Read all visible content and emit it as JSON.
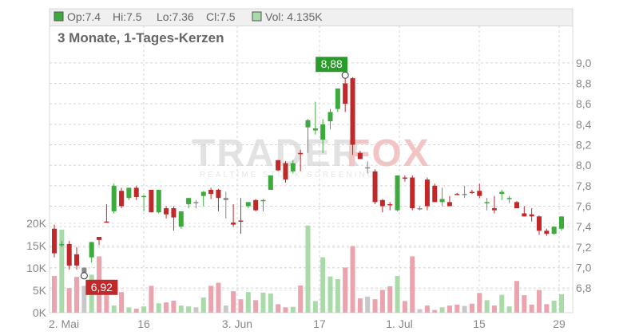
{
  "header": {
    "open_label": "Op:7.4",
    "high_label": "Hi:7.5",
    "low_label": "Lo:7.36",
    "close_label": "Cl:7.5",
    "volume_label": "Vol: 4.135K",
    "price_swatch_color": "#3daa3d",
    "volume_swatch_color": "#a8dba8"
  },
  "subtitle": "3 Monate, 1-Tages-Kerzen",
  "watermark": {
    "brand_left": "TRADER",
    "brand_right": "FOX",
    "tagline": "REALTIME STOCK SCREENING"
  },
  "colors": {
    "up": "#3daa3d",
    "down": "#c0282a",
    "volume_up": "#a8dba8",
    "volume_down": "#eba3ad",
    "volume_neutral": "#c8c8c8",
    "max_flag": "#2a9a2a",
    "min_flag": "#c0282a"
  },
  "chart_data": {
    "type": "candlestick",
    "title": "3 Monate, 1-Tages-Kerzen",
    "price_axis": {
      "ylim": [
        6.7,
        9.1
      ],
      "ticks": [
        "9,0",
        "8,8",
        "8,6",
        "8,4",
        "8,2",
        "8,0",
        "7,8",
        "7,6",
        "7,4",
        "7,2",
        "7,0",
        "6,8"
      ]
    },
    "volume_axis": {
      "ylim": [
        0,
        20000
      ],
      "ticks": [
        "20K",
        "15K",
        "10K",
        "5K",
        "0K"
      ]
    },
    "x_ticks": [
      "2. Mai",
      "16",
      "3. Jun",
      "17",
      "1. Jul",
      "15",
      "29"
    ],
    "max_label": "8,88",
    "min_label": "6,92",
    "candles": [
      {
        "o": 7.38,
        "h": 7.42,
        "l": 7.1,
        "c": 7.14,
        "v": 8200,
        "d": "down"
      },
      {
        "o": 7.23,
        "h": 7.26,
        "l": 7.2,
        "c": 7.23,
        "v": 18600,
        "d": "up"
      },
      {
        "o": 7.23,
        "h": 7.26,
        "l": 6.98,
        "c": 7.02,
        "v": 5500,
        "d": "down"
      },
      {
        "o": 7.13,
        "h": 7.2,
        "l": 6.98,
        "c": 7.02,
        "v": 8000,
        "d": "down"
      },
      {
        "o": 6.95,
        "h": 7.0,
        "l": 6.92,
        "c": 7.0,
        "v": 6000,
        "d": "neutral"
      },
      {
        "o": 7.1,
        "h": 7.25,
        "l": 7.05,
        "c": 7.25,
        "v": 8500,
        "d": "up"
      },
      {
        "o": 7.27,
        "h": 7.3,
        "l": 7.22,
        "c": 7.3,
        "v": 12600,
        "d": "down"
      },
      {
        "o": 7.45,
        "h": 7.62,
        "l": 7.44,
        "c": 7.45,
        "v": 4000,
        "d": "down"
      },
      {
        "o": 7.55,
        "h": 7.82,
        "l": 7.53,
        "c": 7.8,
        "v": 1600,
        "d": "up"
      },
      {
        "o": 7.75,
        "h": 7.78,
        "l": 7.58,
        "c": 7.6,
        "v": 4600,
        "d": "down"
      },
      {
        "o": 7.68,
        "h": 7.78,
        "l": 7.66,
        "c": 7.78,
        "v": 1200,
        "d": "up"
      },
      {
        "o": 7.78,
        "h": 7.8,
        "l": 7.66,
        "c": 7.69,
        "v": 900,
        "d": "down"
      },
      {
        "o": 7.7,
        "h": 7.71,
        "l": 7.55,
        "c": 7.7,
        "v": 1400,
        "d": "up"
      },
      {
        "o": 7.76,
        "h": 7.76,
        "l": 7.54,
        "c": 7.54,
        "v": 6000,
        "d": "down"
      },
      {
        "o": 7.54,
        "h": 7.76,
        "l": 7.53,
        "c": 7.76,
        "v": 2100,
        "d": "up"
      },
      {
        "o": 7.58,
        "h": 7.6,
        "l": 7.48,
        "c": 7.52,
        "v": 2300,
        "d": "down"
      },
      {
        "o": 7.58,
        "h": 7.6,
        "l": 7.36,
        "c": 7.49,
        "v": 2700,
        "d": "down"
      },
      {
        "o": 7.4,
        "h": 7.55,
        "l": 7.38,
        "c": 7.55,
        "v": 1600,
        "d": "up"
      },
      {
        "o": 7.62,
        "h": 7.68,
        "l": 7.58,
        "c": 7.68,
        "v": 1400,
        "d": "up"
      },
      {
        "o": 7.64,
        "h": 7.66,
        "l": 7.58,
        "c": 7.64,
        "v": 1200,
        "d": "neutral"
      },
      {
        "o": 7.74,
        "h": 7.75,
        "l": 7.6,
        "c": 7.7,
        "v": 3400,
        "d": "up"
      },
      {
        "o": 7.76,
        "h": 7.78,
        "l": 7.67,
        "c": 7.72,
        "v": 6000,
        "d": "down"
      },
      {
        "o": 7.76,
        "h": 7.77,
        "l": 7.55,
        "c": 7.68,
        "v": 6700,
        "d": "down"
      },
      {
        "o": 7.68,
        "h": 7.74,
        "l": 7.48,
        "c": 7.66,
        "v": 1600,
        "d": "neutral"
      },
      {
        "o": 7.44,
        "h": 7.62,
        "l": 7.4,
        "c": 7.42,
        "v": 4800,
        "d": "down"
      },
      {
        "o": 7.46,
        "h": 7.68,
        "l": 7.33,
        "c": 7.46,
        "v": 3000,
        "d": "down"
      },
      {
        "o": 7.6,
        "h": 7.64,
        "l": 7.58,
        "c": 7.64,
        "v": 4600,
        "d": "up"
      },
      {
        "o": 7.66,
        "h": 7.67,
        "l": 7.55,
        "c": 7.56,
        "v": 2800,
        "d": "down"
      },
      {
        "o": 7.66,
        "h": 7.67,
        "l": 7.55,
        "c": 7.66,
        "v": 4500,
        "d": "up"
      },
      {
        "o": 7.76,
        "h": 7.9,
        "l": 7.76,
        "c": 7.9,
        "v": 4300,
        "d": "up"
      },
      {
        "o": 7.95,
        "h": 8.05,
        "l": 7.94,
        "c": 8.05,
        "v": 1900,
        "d": "down"
      },
      {
        "o": 8.02,
        "h": 8.04,
        "l": 7.83,
        "c": 7.86,
        "v": 1200,
        "d": "down"
      },
      {
        "o": 7.94,
        "h": 8.05,
        "l": 7.92,
        "c": 8.02,
        "v": 1300,
        "d": "up"
      },
      {
        "o": 8.12,
        "h": 8.15,
        "l": 7.94,
        "c": 8.12,
        "v": 6100,
        "d": "down"
      },
      {
        "o": 8.37,
        "h": 8.45,
        "l": 8.12,
        "c": 8.44,
        "v": 19500,
        "d": "up"
      },
      {
        "o": 8.36,
        "h": 8.62,
        "l": 8.3,
        "c": 8.34,
        "v": 2600,
        "d": "up"
      },
      {
        "o": 8.4,
        "h": 8.45,
        "l": 8.12,
        "c": 8.25,
        "v": 12400,
        "d": "up"
      },
      {
        "o": 8.52,
        "h": 8.55,
        "l": 8.35,
        "c": 8.43,
        "v": 8100,
        "d": "up"
      },
      {
        "o": 8.55,
        "h": 8.75,
        "l": 8.52,
        "c": 8.75,
        "v": 7500,
        "d": "up"
      },
      {
        "o": 8.8,
        "h": 8.88,
        "l": 8.52,
        "c": 8.6,
        "v": 10100,
        "d": "down"
      },
      {
        "o": 8.85,
        "h": 8.86,
        "l": 8.1,
        "c": 8.2,
        "v": 14900,
        "d": "down"
      },
      {
        "o": 8.12,
        "h": 8.14,
        "l": 8.06,
        "c": 8.06,
        "v": 3200,
        "d": "down"
      },
      {
        "o": 7.98,
        "h": 8.04,
        "l": 7.92,
        "c": 7.98,
        "v": 3600,
        "d": "neutral"
      },
      {
        "o": 7.94,
        "h": 7.96,
        "l": 7.62,
        "c": 7.64,
        "v": 3000,
        "d": "down"
      },
      {
        "o": 7.66,
        "h": 7.67,
        "l": 7.54,
        "c": 7.6,
        "v": 5100,
        "d": "down"
      },
      {
        "o": 7.62,
        "h": 7.64,
        "l": 7.56,
        "c": 7.62,
        "v": 5900,
        "d": "down"
      },
      {
        "o": 7.56,
        "h": 7.9,
        "l": 7.55,
        "c": 7.9,
        "v": 8200,
        "d": "up"
      },
      {
        "o": 7.88,
        "h": 7.9,
        "l": 7.84,
        "c": 7.88,
        "v": 2600,
        "d": "down"
      },
      {
        "o": 7.88,
        "h": 7.9,
        "l": 7.56,
        "c": 7.58,
        "v": 12600,
        "d": "down"
      },
      {
        "o": 7.58,
        "h": 7.6,
        "l": 7.56,
        "c": 7.58,
        "v": 800,
        "d": "neutral"
      },
      {
        "o": 7.86,
        "h": 7.88,
        "l": 7.56,
        "c": 7.6,
        "v": 1600,
        "d": "down"
      },
      {
        "o": 7.8,
        "h": 7.82,
        "l": 7.64,
        "c": 7.64,
        "v": 600,
        "d": "down"
      },
      {
        "o": 7.64,
        "h": 7.78,
        "l": 7.6,
        "c": 7.67,
        "v": 1200,
        "d": "up"
      },
      {
        "o": 7.64,
        "h": 7.7,
        "l": 7.6,
        "c": 7.6,
        "v": 1600,
        "d": "down"
      },
      {
        "o": 7.72,
        "h": 7.73,
        "l": 7.71,
        "c": 7.72,
        "v": 1800,
        "d": "down"
      },
      {
        "o": 7.71,
        "h": 7.8,
        "l": 7.68,
        "c": 7.72,
        "v": 1500,
        "d": "neutral"
      },
      {
        "o": 7.74,
        "h": 7.76,
        "l": 7.72,
        "c": 7.74,
        "v": 2000,
        "d": "down"
      },
      {
        "o": 7.75,
        "h": 7.82,
        "l": 7.68,
        "c": 7.7,
        "v": 4400,
        "d": "down"
      },
      {
        "o": 7.64,
        "h": 7.68,
        "l": 7.56,
        "c": 7.64,
        "v": 2800,
        "d": "up"
      },
      {
        "o": 7.58,
        "h": 7.7,
        "l": 7.53,
        "c": 7.56,
        "v": 1600,
        "d": "down"
      },
      {
        "o": 7.74,
        "h": 7.76,
        "l": 7.66,
        "c": 7.72,
        "v": 4000,
        "d": "up"
      },
      {
        "o": 7.68,
        "h": 7.7,
        "l": 7.63,
        "c": 7.67,
        "v": 1400,
        "d": "up"
      },
      {
        "o": 7.64,
        "h": 7.65,
        "l": 7.58,
        "c": 7.58,
        "v": 7100,
        "d": "down"
      },
      {
        "o": 7.53,
        "h": 7.6,
        "l": 7.5,
        "c": 7.5,
        "v": 3900,
        "d": "down"
      },
      {
        "o": 7.52,
        "h": 7.58,
        "l": 7.45,
        "c": 7.5,
        "v": 1800,
        "d": "down"
      },
      {
        "o": 7.5,
        "h": 7.51,
        "l": 7.32,
        "c": 7.36,
        "v": 5100,
        "d": "down"
      },
      {
        "o": 7.36,
        "h": 7.38,
        "l": 7.31,
        "c": 7.33,
        "v": 1900,
        "d": "down"
      },
      {
        "o": 7.33,
        "h": 7.4,
        "l": 7.32,
        "c": 7.4,
        "v": 2700,
        "d": "up"
      },
      {
        "o": 7.38,
        "h": 7.5,
        "l": 7.36,
        "c": 7.5,
        "v": 4135,
        "d": "up"
      }
    ]
  }
}
